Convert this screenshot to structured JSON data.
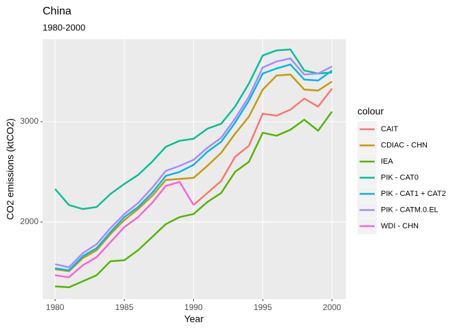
{
  "chart_data": {
    "type": "line",
    "title": "China",
    "subtitle": "1980-2000",
    "x_label": "Year",
    "y_label": "CO2 emissions (ktCO2)",
    "legend_title": "colour",
    "legend_position": "right",
    "grid": true,
    "x": [
      1980,
      1981,
      1982,
      1983,
      1984,
      1985,
      1986,
      1987,
      1988,
      1989,
      1990,
      1991,
      1992,
      1993,
      1994,
      1995,
      1996,
      1997,
      1998,
      1999,
      2000
    ],
    "xlim": [
      1979.1,
      2001
    ],
    "xticks": [
      1980,
      1985,
      1990,
      1995,
      2000
    ],
    "ylim": [
      1233,
      3822
    ],
    "yticks": [
      2000,
      3000
    ],
    "series": [
      {
        "name": "CAIT",
        "color": "#F8766D",
        "values": [
          null,
          null,
          null,
          null,
          null,
          null,
          null,
          null,
          null,
          null,
          2170,
          2290,
          2410,
          2650,
          2760,
          3080,
          3060,
          3120,
          3230,
          3150,
          3330
        ]
      },
      {
        "name": "CDIAC - CHN",
        "color": "#C49A00",
        "values": [
          1530,
          1510,
          1640,
          1720,
          1880,
          2020,
          2130,
          2260,
          2420,
          2430,
          2440,
          2560,
          2690,
          2880,
          3050,
          3320,
          3460,
          3470,
          3320,
          3310,
          3400
        ]
      },
      {
        "name": "IEA",
        "color": "#53B400",
        "values": [
          1360,
          1350,
          1410,
          1470,
          1610,
          1620,
          1720,
          1850,
          1980,
          2050,
          2080,
          2200,
          2290,
          2500,
          2600,
          2890,
          2860,
          2920,
          3020,
          2910,
          3100
        ]
      },
      {
        "name": "PIK - CAT0",
        "color": "#00C094",
        "values": [
          2330,
          2170,
          2130,
          2150,
          2280,
          2380,
          2470,
          2600,
          2750,
          2810,
          2830,
          2930,
          2980,
          3150,
          3380,
          3660,
          3710,
          3720,
          3510,
          3480,
          3490
        ]
      },
      {
        "name": "PIK - CAT1 + CAT2",
        "color": "#00B6EB",
        "values": [
          1540,
          1520,
          1660,
          1740,
          1900,
          2050,
          2150,
          2290,
          2460,
          2500,
          2570,
          2700,
          2800,
          2990,
          3210,
          3480,
          3530,
          3570,
          3420,
          3410,
          3510
        ]
      },
      {
        "name": "PIK - CATM.0.EL",
        "color": "#A58AFF",
        "values": [
          1580,
          1550,
          1690,
          1780,
          1940,
          2080,
          2190,
          2340,
          2510,
          2560,
          2620,
          2740,
          2840,
          3030,
          3250,
          3540,
          3600,
          3630,
          3470,
          3480,
          3550
        ]
      },
      {
        "name": "WDI - CHN",
        "color": "#FB61D7",
        "values": [
          1470,
          1450,
          1570,
          1650,
          1800,
          1950,
          2050,
          2190,
          2360,
          2400,
          2170,
          null,
          null,
          null,
          null,
          null,
          null,
          null,
          null,
          null,
          null
        ]
      }
    ]
  }
}
